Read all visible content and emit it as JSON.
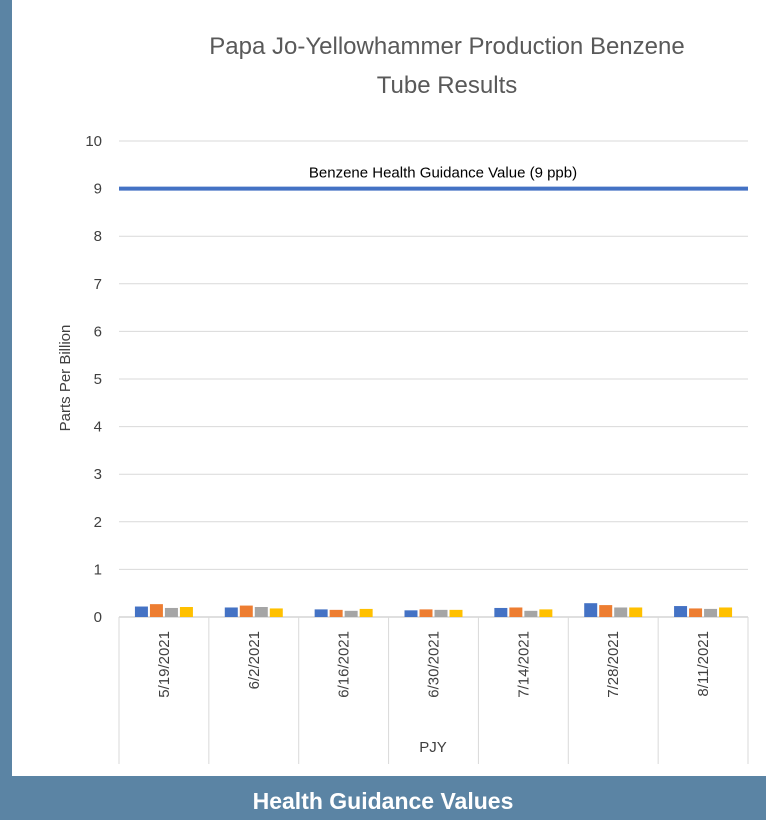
{
  "footer": {
    "caption": "Health Guidance Values"
  },
  "colors": {
    "background": "#5b84a4",
    "panel": "#ffffff",
    "guidance_line": "#4472c4",
    "gridline": "#d9d9d9"
  },
  "chart_data": {
    "type": "bar",
    "title_lines": [
      "Papa Jo-Yellowhammer Production Benzene",
      "Tube Results"
    ],
    "ylabel": "Parts Per Billion",
    "xlabel": "PJY",
    "ylim": [
      0,
      10
    ],
    "yticks": [
      0,
      1,
      2,
      3,
      4,
      5,
      6,
      7,
      8,
      9,
      10
    ],
    "grid": true,
    "categories": [
      "5/19/2021",
      "6/2/2021",
      "6/16/2021",
      "6/30/2021",
      "7/14/2021",
      "7/28/2021",
      "8/11/2021"
    ],
    "series": [
      {
        "color": "#4472c4",
        "values": [
          0.22,
          0.2,
          0.16,
          0.14,
          0.19,
          0.29,
          0.23
        ]
      },
      {
        "color": "#ed7d31",
        "values": [
          0.27,
          0.24,
          0.15,
          0.16,
          0.2,
          0.25,
          0.18
        ]
      },
      {
        "color": "#a5a5a5",
        "values": [
          0.19,
          0.21,
          0.13,
          0.15,
          0.13,
          0.2,
          0.17
        ]
      },
      {
        "color": "#ffc000",
        "values": [
          0.21,
          0.18,
          0.17,
          0.15,
          0.16,
          0.2,
          0.2
        ]
      }
    ],
    "reference_line": {
      "value": 9,
      "label": "Benzene Health Guidance Value (9 ppb)",
      "color": "#4472c4"
    }
  }
}
